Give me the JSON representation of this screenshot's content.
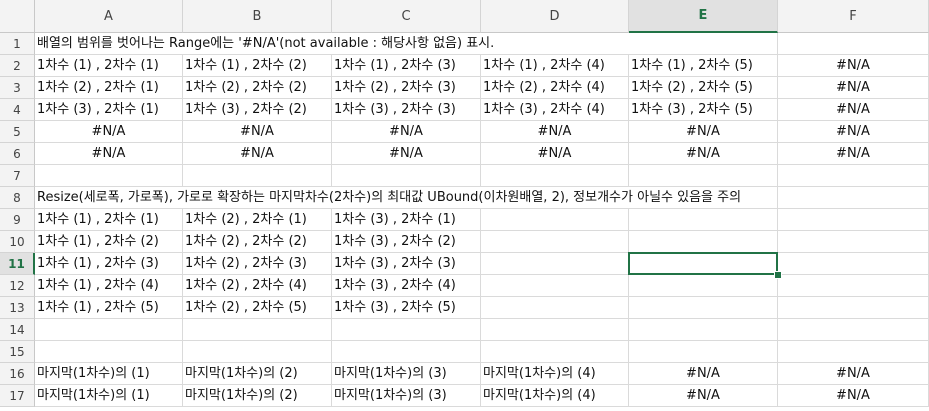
{
  "columns": [
    "A",
    "B",
    "C",
    "D",
    "E",
    "F"
  ],
  "selected_column": "E",
  "selected_row": "11",
  "rows": [
    {
      "num": "1",
      "cells": [
        {
          "col": 0,
          "text": "배열의 범위를 벗어나는 Range에는 '#N/A'(not available : 해당사항 없음) 표시.",
          "span": true
        }
      ]
    },
    {
      "num": "2",
      "cells": [
        {
          "col": 0,
          "text": "1차수 (1) , 2차수 (1)"
        },
        {
          "col": 1,
          "text": "1차수 (1) , 2차수 (2)"
        },
        {
          "col": 2,
          "text": "1차수 (1) , 2차수 (3)"
        },
        {
          "col": 3,
          "text": "1차수 (1) , 2차수 (4)"
        },
        {
          "col": 4,
          "text": "1차수 (1) , 2차수 (5)"
        },
        {
          "col": 5,
          "text": "#N/A",
          "center": true
        }
      ]
    },
    {
      "num": "3",
      "cells": [
        {
          "col": 0,
          "text": "1차수 (2) , 2차수 (1)"
        },
        {
          "col": 1,
          "text": "1차수 (2) , 2차수 (2)"
        },
        {
          "col": 2,
          "text": "1차수 (2) , 2차수 (3)"
        },
        {
          "col": 3,
          "text": "1차수 (2) , 2차수 (4)"
        },
        {
          "col": 4,
          "text": "1차수 (2) , 2차수 (5)"
        },
        {
          "col": 5,
          "text": "#N/A",
          "center": true
        }
      ]
    },
    {
      "num": "4",
      "cells": [
        {
          "col": 0,
          "text": "1차수 (3) , 2차수 (1)"
        },
        {
          "col": 1,
          "text": "1차수 (3) , 2차수 (2)"
        },
        {
          "col": 2,
          "text": "1차수 (3) , 2차수 (3)"
        },
        {
          "col": 3,
          "text": "1차수 (3) , 2차수 (4)"
        },
        {
          "col": 4,
          "text": "1차수 (3) , 2차수 (5)"
        },
        {
          "col": 5,
          "text": "#N/A",
          "center": true
        }
      ]
    },
    {
      "num": "5",
      "cells": [
        {
          "col": 0,
          "text": "#N/A",
          "center": true
        },
        {
          "col": 1,
          "text": "#N/A",
          "center": true
        },
        {
          "col": 2,
          "text": "#N/A",
          "center": true
        },
        {
          "col": 3,
          "text": "#N/A",
          "center": true
        },
        {
          "col": 4,
          "text": "#N/A",
          "center": true
        },
        {
          "col": 5,
          "text": "#N/A",
          "center": true
        }
      ]
    },
    {
      "num": "6",
      "cells": [
        {
          "col": 0,
          "text": "#N/A",
          "center": true
        },
        {
          "col": 1,
          "text": "#N/A",
          "center": true
        },
        {
          "col": 2,
          "text": "#N/A",
          "center": true
        },
        {
          "col": 3,
          "text": "#N/A",
          "center": true
        },
        {
          "col": 4,
          "text": "#N/A",
          "center": true
        },
        {
          "col": 5,
          "text": "#N/A",
          "center": true
        }
      ]
    },
    {
      "num": "7",
      "cells": []
    },
    {
      "num": "8",
      "cells": [
        {
          "col": 0,
          "text": "Resize(세로폭, 가로폭), 가로로 확장하는 마지막차수(2차수)의 최대값 UBound(이차원배열, 2), 정보개수가 아닐수 있음을 주의",
          "span": true
        }
      ]
    },
    {
      "num": "9",
      "cells": [
        {
          "col": 0,
          "text": "1차수 (1) , 2차수 (1)"
        },
        {
          "col": 1,
          "text": "1차수 (2) , 2차수 (1)"
        },
        {
          "col": 2,
          "text": "1차수 (3) , 2차수 (1)"
        }
      ]
    },
    {
      "num": "10",
      "cells": [
        {
          "col": 0,
          "text": "1차수 (1) , 2차수 (2)"
        },
        {
          "col": 1,
          "text": "1차수 (2) , 2차수 (2)"
        },
        {
          "col": 2,
          "text": "1차수 (3) , 2차수 (2)"
        }
      ]
    },
    {
      "num": "11",
      "cells": [
        {
          "col": 0,
          "text": "1차수 (1) , 2차수 (3)"
        },
        {
          "col": 1,
          "text": "1차수 (2) , 2차수 (3)"
        },
        {
          "col": 2,
          "text": "1차수 (3) , 2차수 (3)"
        }
      ]
    },
    {
      "num": "12",
      "cells": [
        {
          "col": 0,
          "text": "1차수 (1) , 2차수 (4)"
        },
        {
          "col": 1,
          "text": "1차수 (2) , 2차수 (4)"
        },
        {
          "col": 2,
          "text": "1차수 (3) , 2차수 (4)"
        }
      ]
    },
    {
      "num": "13",
      "cells": [
        {
          "col": 0,
          "text": "1차수 (1) , 2차수 (5)"
        },
        {
          "col": 1,
          "text": "1차수 (2) , 2차수 (5)"
        },
        {
          "col": 2,
          "text": "1차수 (3) , 2차수 (5)"
        }
      ]
    },
    {
      "num": "14",
      "cells": []
    },
    {
      "num": "15",
      "cells": []
    },
    {
      "num": "16",
      "cells": [
        {
          "col": 0,
          "text": "마지막(1차수)의 (1)"
        },
        {
          "col": 1,
          "text": "마지막(1차수)의 (2)"
        },
        {
          "col": 2,
          "text": "마지막(1차수)의 (3)"
        },
        {
          "col": 3,
          "text": "마지막(1차수)의 (4)"
        },
        {
          "col": 4,
          "text": "#N/A",
          "center": true
        },
        {
          "col": 5,
          "text": "#N/A",
          "center": true
        }
      ]
    },
    {
      "num": "17",
      "cells": [
        {
          "col": 0,
          "text": "마지막(1차수)의 (1)"
        },
        {
          "col": 1,
          "text": "마지막(1차수)의 (2)"
        },
        {
          "col": 2,
          "text": "마지막(1차수)의 (3)"
        },
        {
          "col": 3,
          "text": "마지막(1차수)의 (4)"
        },
        {
          "col": 4,
          "text": "#N/A",
          "center": true
        },
        {
          "col": 5,
          "text": "#N/A",
          "center": true
        }
      ]
    }
  ]
}
